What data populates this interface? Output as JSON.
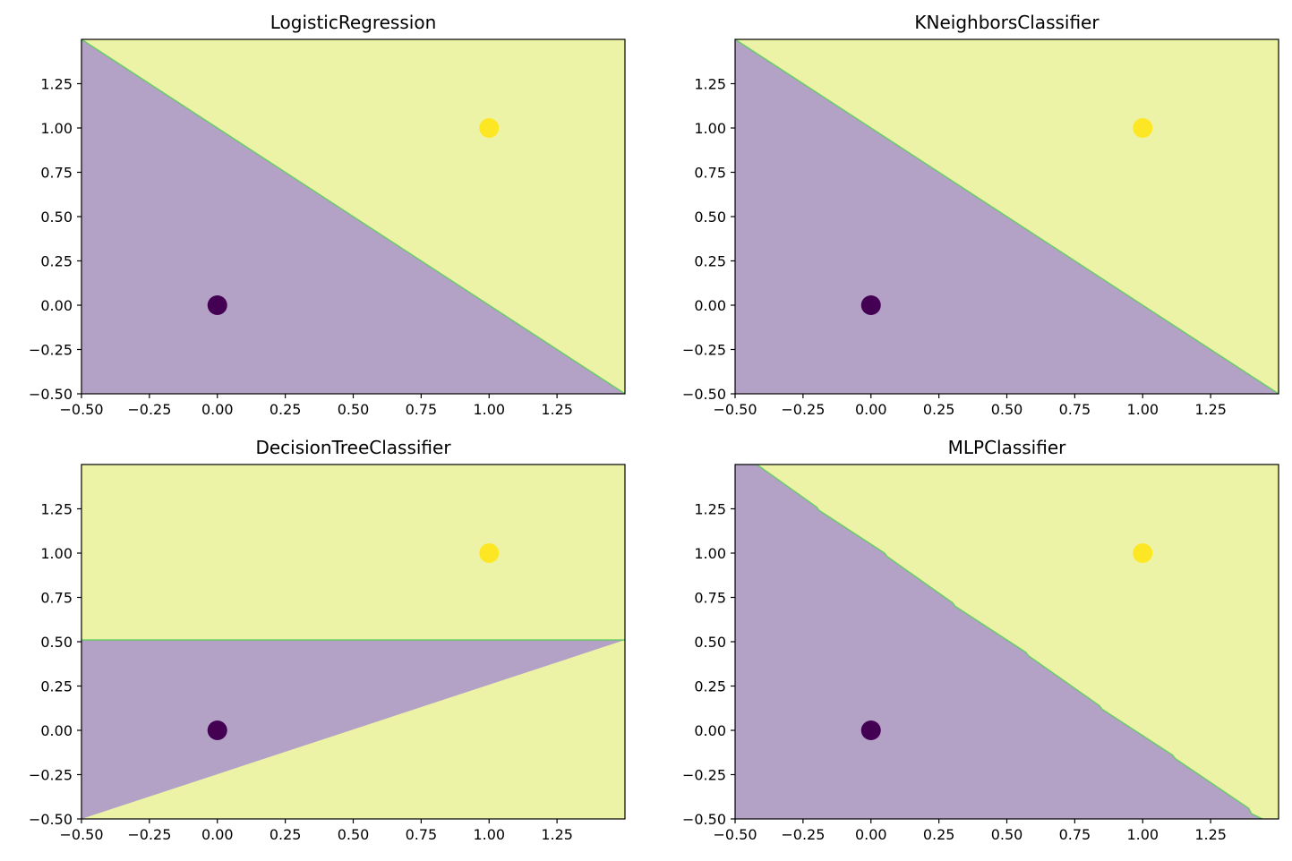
{
  "colors": {
    "class0_region": "#b3a2c6",
    "class1_region": "#ecf3a6",
    "class0_point": "#440154",
    "class1_point": "#fde725",
    "boundary": "#5ec962",
    "axis": "#000000"
  },
  "chart_data": [
    {
      "type": "scatter",
      "title": "LogisticRegression",
      "xlabel": "",
      "ylabel": "",
      "xlim": [
        -0.5,
        1.5
      ],
      "ylim": [
        -0.5,
        1.5
      ],
      "x_ticks": [
        "−0.50",
        "−0.25",
        "0.00",
        "0.25",
        "0.50",
        "0.75",
        "1.00",
        "1.25"
      ],
      "y_ticks": [
        "−0.50",
        "−0.25",
        "0.00",
        "0.25",
        "0.50",
        "0.75",
        "1.00",
        "1.25"
      ],
      "points": [
        {
          "x": 0,
          "y": 0,
          "class": 0
        },
        {
          "x": 1,
          "y": 1,
          "class": 1
        }
      ],
      "boundary": [
        [
          -0.5,
          1.5
        ],
        [
          1.5,
          -0.5
        ]
      ],
      "grid": false
    },
    {
      "type": "scatter",
      "title": "KNeighborsClassifier",
      "xlabel": "",
      "ylabel": "",
      "xlim": [
        -0.5,
        1.5
      ],
      "ylim": [
        -0.5,
        1.5
      ],
      "x_ticks": [
        "−0.50",
        "−0.25",
        "0.00",
        "0.25",
        "0.50",
        "0.75",
        "1.00",
        "1.25"
      ],
      "y_ticks": [
        "−0.50",
        "−0.25",
        "0.00",
        "0.25",
        "0.50",
        "0.75",
        "1.00",
        "1.25"
      ],
      "points": [
        {
          "x": 0,
          "y": 0,
          "class": 0
        },
        {
          "x": 1,
          "y": 1,
          "class": 1
        }
      ],
      "boundary": [
        [
          -0.5,
          1.5
        ],
        [
          1.5,
          -0.5
        ]
      ],
      "grid": false
    },
    {
      "type": "scatter",
      "title": "DecisionTreeClassifier",
      "xlabel": "",
      "ylabel": "",
      "xlim": [
        -0.5,
        1.5
      ],
      "ylim": [
        -0.5,
        1.5
      ],
      "x_ticks": [
        "−0.50",
        "−0.25",
        "0.00",
        "0.25",
        "0.50",
        "0.75",
        "1.00",
        "1.25"
      ],
      "y_ticks": [
        "−0.50",
        "−0.25",
        "0.00",
        "0.25",
        "0.50",
        "0.75",
        "1.00",
        "1.25"
      ],
      "points": [
        {
          "x": 0,
          "y": 0,
          "class": 0
        },
        {
          "x": 1,
          "y": 1,
          "class": 1
        }
      ],
      "boundary": [
        [
          -0.5,
          0.51
        ],
        [
          1.5,
          0.51
        ]
      ],
      "grid": false
    },
    {
      "type": "scatter",
      "title": "MLPClassifier",
      "xlabel": "",
      "ylabel": "",
      "xlim": [
        -0.5,
        1.5
      ],
      "ylim": [
        -0.5,
        1.5
      ],
      "x_ticks": [
        "−0.50",
        "−0.25",
        "0.00",
        "0.25",
        "0.50",
        "0.75",
        "1.00",
        "1.25"
      ],
      "y_ticks": [
        "−0.50",
        "−0.25",
        "0.00",
        "0.25",
        "0.50",
        "0.75",
        "1.00",
        "1.25"
      ],
      "points": [
        {
          "x": 0,
          "y": 0,
          "class": 0
        },
        {
          "x": 1,
          "y": 1,
          "class": 1
        }
      ],
      "boundary": [
        [
          -0.42,
          1.5
        ],
        [
          -0.2,
          1.26
        ],
        [
          -0.19,
          1.24
        ],
        [
          0.05,
          1.0
        ],
        [
          0.06,
          0.98
        ],
        [
          0.3,
          0.72
        ],
        [
          0.31,
          0.7
        ],
        [
          0.57,
          0.44
        ],
        [
          0.58,
          0.42
        ],
        [
          0.84,
          0.14
        ],
        [
          0.85,
          0.12
        ],
        [
          1.11,
          -0.14
        ],
        [
          1.12,
          -0.16
        ],
        [
          1.39,
          -0.44
        ],
        [
          1.4,
          -0.47
        ],
        [
          1.44,
          -0.5
        ]
      ],
      "grid": false
    }
  ]
}
